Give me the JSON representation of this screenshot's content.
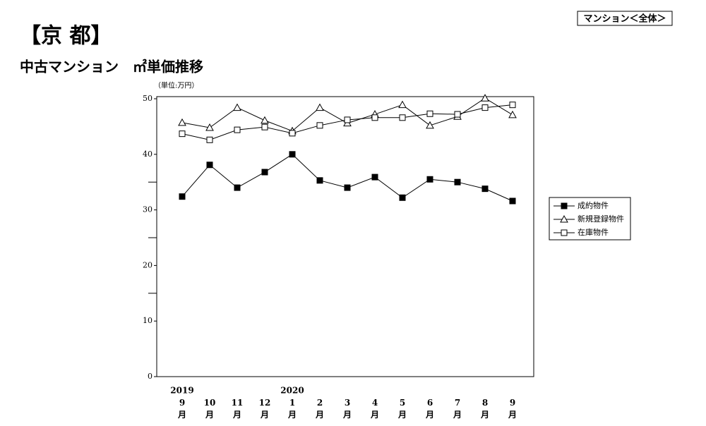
{
  "chart_data": {
    "type": "line",
    "title": "【京 都】",
    "subtitle": "中古マンション　㎡単価推移",
    "annotation": "マンション＜全体＞",
    "y_label": "（単位:万円）",
    "categories": [
      "9月",
      "10月",
      "11月",
      "12月",
      "1月",
      "2月",
      "3月",
      "4月",
      "5月",
      "6月",
      "7月",
      "8月",
      "9月"
    ],
    "years": [
      "2019",
      null,
      null,
      null,
      "2020",
      null,
      null,
      null,
      null,
      null,
      null,
      null,
      null
    ],
    "series": [
      {
        "name": "成約物件",
        "color": "#000000",
        "marker": "filled-square",
        "values": [
          32.4,
          38.1,
          34.0,
          36.8,
          40.0,
          35.3,
          34.0,
          35.9,
          32.2,
          35.5,
          35.0,
          33.8,
          31.6
        ]
      },
      {
        "name": "新規登録物件",
        "color": "#000000",
        "marker": "triangle",
        "values": [
          45.7,
          44.8,
          48.4,
          46.1,
          44.2,
          48.4,
          45.6,
          47.2,
          48.9,
          45.2,
          46.8,
          50.1,
          47.1
        ]
      },
      {
        "name": "在庫物件",
        "color": "#000000",
        "marker": "open-square",
        "values": [
          43.7,
          42.6,
          44.4,
          44.9,
          43.8,
          45.2,
          46.2,
          46.6,
          46.6,
          47.3,
          47.2,
          48.4,
          48.9
        ]
      }
    ],
    "ylim": [
      0,
      50
    ],
    "yticks": [
      0,
      10,
      20,
      30,
      40,
      50
    ],
    "minor_yticks": [
      15,
      25,
      35
    ],
    "grid": false,
    "legend": "right"
  }
}
